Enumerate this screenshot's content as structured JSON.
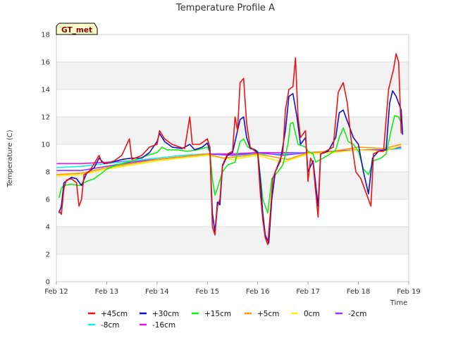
{
  "chart_data": {
    "type": "line",
    "title": "Temperature Profile A",
    "xlabel": "Time",
    "ylabel": "Temperature (C)",
    "badge": "GT_met",
    "x_ticks": [
      "Feb 12",
      "Feb 13",
      "Feb 14",
      "Feb 15",
      "Feb 16",
      "Feb 17",
      "Feb 18",
      "Feb 19"
    ],
    "xlim_days": [
      12,
      19
    ],
    "ylim": [
      0,
      18
    ],
    "y_ticks": [
      0,
      2,
      4,
      6,
      8,
      10,
      12,
      14,
      16,
      18
    ],
    "grid": "horizontal bands",
    "legend_position": "bottom",
    "series": [
      {
        "name": "+45cm",
        "color": "#ee1111",
        "points": [
          [
            12.05,
            5.2
          ],
          [
            12.1,
            4.9
          ],
          [
            12.15,
            6.8
          ],
          [
            12.2,
            7.4
          ],
          [
            12.3,
            7.5
          ],
          [
            12.4,
            7.2
          ],
          [
            12.45,
            5.5
          ],
          [
            12.5,
            6.0
          ],
          [
            12.55,
            7.8
          ],
          [
            12.65,
            8.0
          ],
          [
            12.75,
            8.6
          ],
          [
            12.85,
            9.2
          ],
          [
            12.9,
            8.7
          ],
          [
            13.0,
            8.6
          ],
          [
            13.15,
            8.8
          ],
          [
            13.3,
            9.2
          ],
          [
            13.45,
            10.4
          ],
          [
            13.5,
            8.9
          ],
          [
            13.7,
            9.2
          ],
          [
            13.85,
            9.8
          ],
          [
            14.0,
            10.0
          ],
          [
            14.05,
            11.0
          ],
          [
            14.15,
            10.4
          ],
          [
            14.3,
            10.0
          ],
          [
            14.45,
            9.8
          ],
          [
            14.55,
            9.7
          ],
          [
            14.65,
            12.0
          ],
          [
            14.7,
            10.0
          ],
          [
            14.85,
            10.0
          ],
          [
            15.0,
            10.4
          ],
          [
            15.05,
            9.8
          ],
          [
            15.1,
            4.0
          ],
          [
            15.15,
            3.4
          ],
          [
            15.2,
            5.5
          ],
          [
            15.25,
            6.0
          ],
          [
            15.3,
            8.5
          ],
          [
            15.4,
            9.3
          ],
          [
            15.5,
            9.5
          ],
          [
            15.55,
            12.0
          ],
          [
            15.6,
            11.0
          ],
          [
            15.65,
            14.5
          ],
          [
            15.72,
            14.8
          ],
          [
            15.78,
            11.5
          ],
          [
            15.85,
            9.8
          ],
          [
            15.95,
            9.5
          ],
          [
            16.0,
            9.3
          ],
          [
            16.05,
            6.5
          ],
          [
            16.1,
            4.5
          ],
          [
            16.15,
            3.2
          ],
          [
            16.2,
            2.7
          ],
          [
            16.25,
            5.0
          ],
          [
            16.3,
            7.5
          ],
          [
            16.4,
            8.5
          ],
          [
            16.5,
            9.4
          ],
          [
            16.55,
            12.5
          ],
          [
            16.62,
            14.0
          ],
          [
            16.7,
            14.2
          ],
          [
            16.75,
            16.3
          ],
          [
            16.8,
            12.0
          ],
          [
            16.85,
            10.5
          ],
          [
            16.95,
            11.0
          ],
          [
            17.0,
            7.3
          ],
          [
            17.05,
            9.0
          ],
          [
            17.1,
            8.6
          ],
          [
            17.2,
            4.7
          ],
          [
            17.25,
            9.3
          ],
          [
            17.35,
            9.5
          ],
          [
            17.5,
            9.8
          ],
          [
            17.6,
            13.8
          ],
          [
            17.7,
            14.5
          ],
          [
            17.78,
            13.0
          ],
          [
            17.85,
            10.5
          ],
          [
            17.95,
            8.0
          ],
          [
            18.05,
            7.5
          ],
          [
            18.15,
            6.5
          ],
          [
            18.25,
            5.5
          ],
          [
            18.3,
            9.3
          ],
          [
            18.4,
            9.5
          ],
          [
            18.5,
            9.5
          ],
          [
            18.6,
            14.0
          ],
          [
            18.7,
            15.5
          ],
          [
            18.75,
            16.6
          ],
          [
            18.8,
            16.0
          ],
          [
            18.85,
            10.8
          ]
        ]
      },
      {
        "name": "+30cm",
        "color": "#1010cc",
        "points": [
          [
            12.05,
            5.0
          ],
          [
            12.1,
            5.5
          ],
          [
            12.15,
            7.2
          ],
          [
            12.3,
            7.6
          ],
          [
            12.4,
            7.5
          ],
          [
            12.5,
            7.0
          ],
          [
            12.6,
            7.9
          ],
          [
            12.75,
            8.3
          ],
          [
            12.85,
            9.0
          ],
          [
            12.95,
            8.6
          ],
          [
            13.1,
            8.7
          ],
          [
            13.3,
            8.9
          ],
          [
            13.5,
            9.0
          ],
          [
            13.7,
            9.0
          ],
          [
            13.85,
            9.4
          ],
          [
            14.0,
            10.2
          ],
          [
            14.05,
            10.8
          ],
          [
            14.15,
            10.2
          ],
          [
            14.3,
            9.8
          ],
          [
            14.5,
            9.7
          ],
          [
            14.65,
            10.0
          ],
          [
            14.75,
            9.6
          ],
          [
            14.9,
            9.8
          ],
          [
            15.0,
            10.1
          ],
          [
            15.05,
            9.5
          ],
          [
            15.1,
            5.0
          ],
          [
            15.15,
            3.6
          ],
          [
            15.2,
            5.8
          ],
          [
            15.25,
            5.6
          ],
          [
            15.3,
            8.4
          ],
          [
            15.4,
            9.2
          ],
          [
            15.5,
            9.4
          ],
          [
            15.6,
            11.0
          ],
          [
            15.65,
            11.8
          ],
          [
            15.72,
            12.0
          ],
          [
            15.78,
            10.5
          ],
          [
            15.85,
            9.7
          ],
          [
            15.95,
            9.6
          ],
          [
            16.0,
            9.4
          ],
          [
            16.05,
            7.5
          ],
          [
            16.1,
            5.0
          ],
          [
            16.15,
            3.4
          ],
          [
            16.22,
            2.8
          ],
          [
            16.28,
            6.0
          ],
          [
            16.35,
            8.0
          ],
          [
            16.45,
            8.8
          ],
          [
            16.55,
            11.0
          ],
          [
            16.62,
            13.5
          ],
          [
            16.7,
            13.7
          ],
          [
            16.78,
            12.0
          ],
          [
            16.85,
            10.0
          ],
          [
            16.95,
            10.5
          ],
          [
            17.0,
            8.0
          ],
          [
            17.1,
            8.8
          ],
          [
            17.2,
            5.5
          ],
          [
            17.25,
            9.3
          ],
          [
            17.4,
            9.5
          ],
          [
            17.55,
            10.5
          ],
          [
            17.62,
            12.3
          ],
          [
            17.7,
            12.5
          ],
          [
            17.8,
            11.5
          ],
          [
            17.9,
            10.5
          ],
          [
            18.0,
            10.0
          ],
          [
            18.1,
            8.0
          ],
          [
            18.2,
            6.4
          ],
          [
            18.28,
            9.0
          ],
          [
            18.4,
            9.5
          ],
          [
            18.55,
            9.6
          ],
          [
            18.62,
            13.0
          ],
          [
            18.68,
            13.9
          ],
          [
            18.75,
            13.5
          ],
          [
            18.85,
            12.5
          ],
          [
            18.88,
            10.7
          ]
        ]
      },
      {
        "name": "+15cm",
        "color": "#11ee11",
        "points": [
          [
            12.05,
            6.1
          ],
          [
            12.1,
            6.8
          ],
          [
            12.15,
            7.0
          ],
          [
            12.3,
            7.1
          ],
          [
            12.45,
            7.0
          ],
          [
            12.6,
            7.3
          ],
          [
            12.75,
            7.5
          ],
          [
            12.9,
            7.9
          ],
          [
            13.0,
            8.2
          ],
          [
            13.2,
            8.5
          ],
          [
            13.4,
            8.7
          ],
          [
            13.6,
            8.9
          ],
          [
            13.8,
            9.2
          ],
          [
            14.0,
            9.4
          ],
          [
            14.1,
            9.8
          ],
          [
            14.2,
            9.6
          ],
          [
            14.4,
            9.6
          ],
          [
            14.6,
            9.5
          ],
          [
            14.8,
            9.6
          ],
          [
            15.0,
            9.8
          ],
          [
            15.05,
            9.4
          ],
          [
            15.1,
            7.5
          ],
          [
            15.15,
            6.3
          ],
          [
            15.2,
            6.8
          ],
          [
            15.3,
            8.0
          ],
          [
            15.4,
            8.5
          ],
          [
            15.55,
            8.7
          ],
          [
            15.65,
            10.2
          ],
          [
            15.72,
            10.4
          ],
          [
            15.8,
            9.8
          ],
          [
            15.9,
            9.7
          ],
          [
            16.0,
            9.5
          ],
          [
            16.05,
            7.8
          ],
          [
            16.1,
            6.0
          ],
          [
            16.2,
            5.0
          ],
          [
            16.28,
            7.5
          ],
          [
            16.4,
            8.0
          ],
          [
            16.5,
            8.5
          ],
          [
            16.6,
            10.0
          ],
          [
            16.65,
            11.5
          ],
          [
            16.7,
            11.6
          ],
          [
            16.8,
            10.0
          ],
          [
            16.95,
            9.8
          ],
          [
            17.0,
            9.5
          ],
          [
            17.1,
            9.3
          ],
          [
            17.15,
            8.7
          ],
          [
            17.25,
            8.9
          ],
          [
            17.4,
            9.2
          ],
          [
            17.55,
            9.6
          ],
          [
            17.62,
            10.5
          ],
          [
            17.7,
            11.2
          ],
          [
            17.8,
            10.2
          ],
          [
            17.9,
            10.0
          ],
          [
            18.0,
            9.5
          ],
          [
            18.1,
            8.2
          ],
          [
            18.2,
            7.8
          ],
          [
            18.3,
            8.8
          ],
          [
            18.45,
            9.0
          ],
          [
            18.55,
            9.3
          ],
          [
            18.65,
            11.0
          ],
          [
            18.72,
            12.1
          ],
          [
            18.8,
            12.0
          ],
          [
            18.86,
            11.5
          ]
        ]
      },
      {
        "name": "+5cm",
        "color": "#ff9900",
        "points": [
          [
            12.0,
            7.8
          ],
          [
            12.5,
            7.9
          ],
          [
            13.0,
            8.3
          ],
          [
            13.5,
            8.6
          ],
          [
            14.0,
            8.9
          ],
          [
            14.5,
            9.1
          ],
          [
            15.0,
            9.3
          ],
          [
            15.3,
            9.0
          ],
          [
            15.6,
            9.1
          ],
          [
            16.0,
            9.3
          ],
          [
            16.3,
            9.1
          ],
          [
            16.6,
            8.9
          ],
          [
            17.0,
            9.4
          ],
          [
            17.5,
            9.5
          ],
          [
            18.0,
            9.8
          ],
          [
            18.5,
            9.7
          ],
          [
            18.85,
            10.0
          ]
        ]
      },
      {
        "name": "0cm",
        "color": "#ffee00",
        "points": [
          [
            12.0,
            7.7
          ],
          [
            12.5,
            7.8
          ],
          [
            13.0,
            8.2
          ],
          [
            13.5,
            8.5
          ],
          [
            14.0,
            8.8
          ],
          [
            14.5,
            9.0
          ],
          [
            15.0,
            9.2
          ],
          [
            15.5,
            8.9
          ],
          [
            16.0,
            9.2
          ],
          [
            16.5,
            8.7
          ],
          [
            17.0,
            9.3
          ],
          [
            17.5,
            9.4
          ],
          [
            18.0,
            9.6
          ],
          [
            18.5,
            9.5
          ],
          [
            18.85,
            9.9
          ]
        ]
      },
      {
        "name": "-2cm",
        "color": "#9933ff",
        "points": [
          [
            12.0,
            8.1
          ],
          [
            12.5,
            8.1
          ],
          [
            13.0,
            8.4
          ],
          [
            13.5,
            8.7
          ],
          [
            14.0,
            8.9
          ],
          [
            14.5,
            9.1
          ],
          [
            15.0,
            9.3
          ],
          [
            15.5,
            9.2
          ],
          [
            16.0,
            9.4
          ],
          [
            16.5,
            9.2
          ],
          [
            17.0,
            9.4
          ],
          [
            17.5,
            9.5
          ],
          [
            18.0,
            9.6
          ],
          [
            18.5,
            9.6
          ],
          [
            18.85,
            9.8
          ]
        ]
      },
      {
        "name": "-8cm",
        "color": "#11eeee",
        "points": [
          [
            12.0,
            8.3
          ],
          [
            12.5,
            8.4
          ],
          [
            13.0,
            8.6
          ],
          [
            13.5,
            8.8
          ],
          [
            14.0,
            9.0
          ],
          [
            14.5,
            9.2
          ],
          [
            15.0,
            9.3
          ],
          [
            15.5,
            9.2
          ],
          [
            16.0,
            9.3
          ],
          [
            16.5,
            9.3
          ],
          [
            17.0,
            9.4
          ],
          [
            17.5,
            9.5
          ],
          [
            18.0,
            9.6
          ],
          [
            18.5,
            9.6
          ],
          [
            18.85,
            9.7
          ]
        ]
      },
      {
        "name": "-16cm",
        "color": "#ee11ee",
        "points": [
          [
            12.0,
            8.6
          ],
          [
            12.5,
            8.6
          ],
          [
            13.0,
            8.7
          ],
          [
            13.5,
            8.8
          ],
          [
            14.0,
            8.9
          ],
          [
            14.5,
            9.1
          ],
          [
            15.0,
            9.3
          ],
          [
            15.5,
            9.3
          ],
          [
            16.0,
            9.4
          ],
          [
            16.5,
            9.4
          ],
          [
            17.0,
            9.4
          ],
          [
            17.5,
            9.5
          ],
          [
            18.0,
            9.6
          ],
          [
            18.5,
            9.6
          ],
          [
            18.85,
            9.7
          ]
        ]
      }
    ]
  }
}
